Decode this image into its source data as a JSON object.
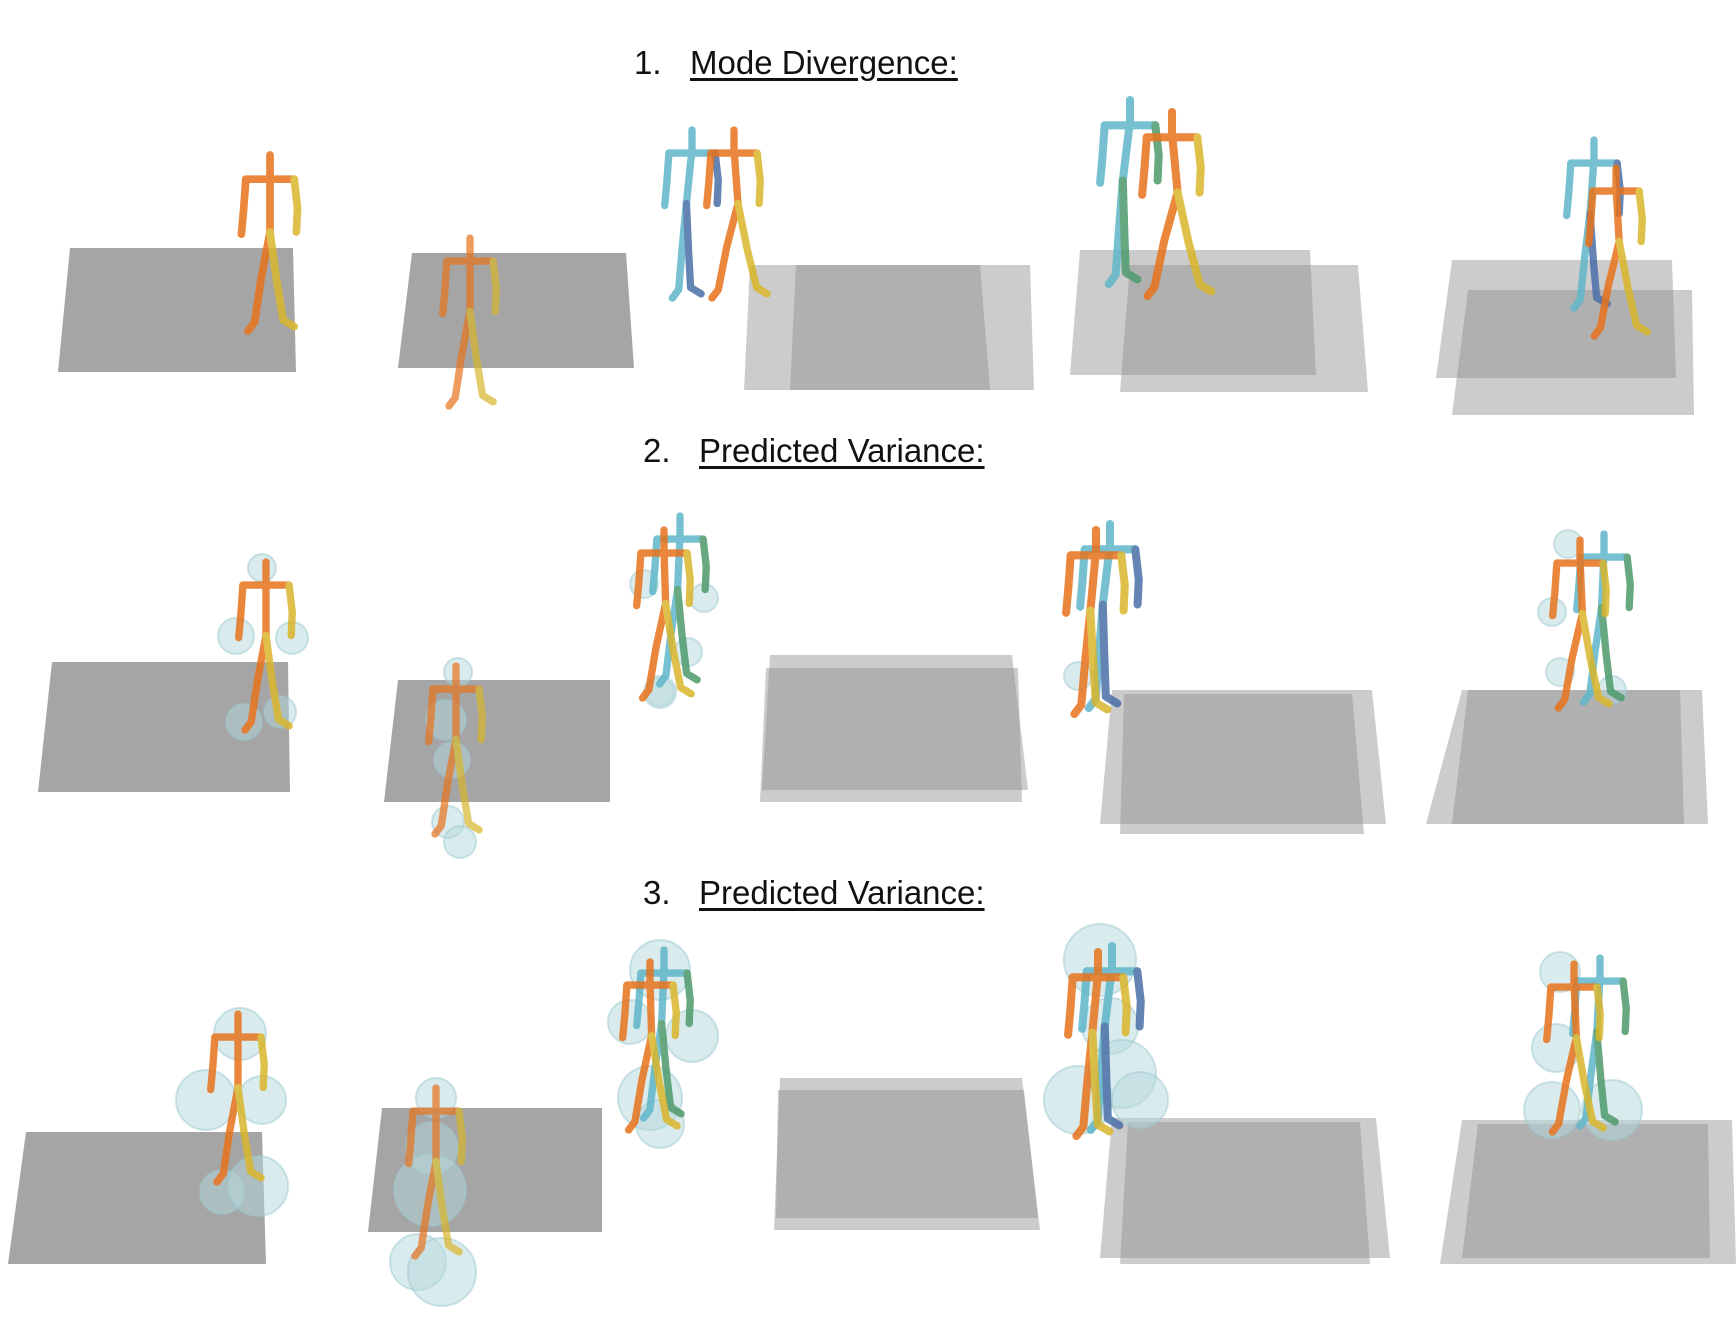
{
  "sections": [
    {
      "number": "1.",
      "title": "Mode Divergence:"
    },
    {
      "number": "2.",
      "title": "Predicted Variance:"
    },
    {
      "number": "3.",
      "title": "Predicted Variance:"
    }
  ],
  "colors": {
    "floor": "#8f8f8f",
    "figure_a_upper": "#e8731c",
    "figure_a_lower": "#d9b62b",
    "figure_b_upper": "#5fb6c9",
    "figure_b_lower": "#4a6fa8",
    "figure_b_alt": "#4d9a6c",
    "variance_halo": "#b6d8dc"
  }
}
